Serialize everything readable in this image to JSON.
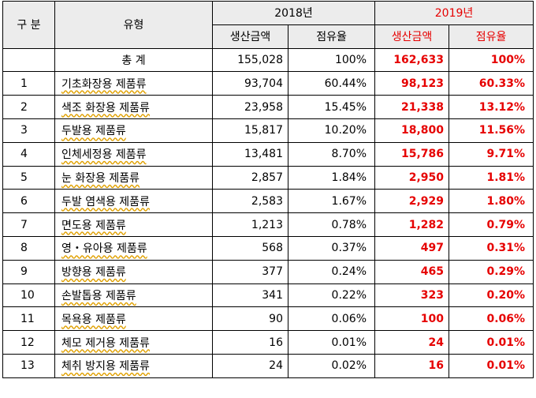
{
  "header": {
    "category": "구 분",
    "type": "유형",
    "year_2018": "2018년",
    "year_2019": "2019년",
    "production_amount_2018": "생산금액",
    "share_2018": "점유율",
    "production_amount_2019": "생산금액",
    "share_2019": "점유율"
  },
  "total": {
    "label": "총 계",
    "amount_2018": "155,028",
    "share_2018": "100%",
    "amount_2019": "162,633",
    "share_2019": "100%"
  },
  "rows": [
    {
      "no": "1",
      "name": "기초화장용 제품류",
      "amount_2018": "93,704",
      "share_2018": "60.44%",
      "amount_2019": "98,123",
      "share_2019": "60.33%"
    },
    {
      "no": "2",
      "name": "색조 화장용 제품류",
      "amount_2018": "23,958",
      "share_2018": "15.45%",
      "amount_2019": "21,338",
      "share_2019": "13.12%"
    },
    {
      "no": "3",
      "name": "두발용 제품류",
      "amount_2018": "15,817",
      "share_2018": "10.20%",
      "amount_2019": "18,800",
      "share_2019": "11.56%"
    },
    {
      "no": "4",
      "name": "인체세정용 제품류",
      "amount_2018": "13,481",
      "share_2018": "8.70%",
      "amount_2019": "15,786",
      "share_2019": "9.71%"
    },
    {
      "no": "5",
      "name": "눈 화장용 제품류",
      "amount_2018": "2,857",
      "share_2018": "1.84%",
      "amount_2019": "2,950",
      "share_2019": "1.81%"
    },
    {
      "no": "6",
      "name": "두발 염색용 제품류",
      "amount_2018": "2,583",
      "share_2018": "1.67%",
      "amount_2019": "2,929",
      "share_2019": "1.80%"
    },
    {
      "no": "7",
      "name": "면도용 제품류",
      "amount_2018": "1,213",
      "share_2018": "0.78%",
      "amount_2019": "1,282",
      "share_2019": "0.79%"
    },
    {
      "no": "8",
      "name": "영・유아용 제품류",
      "amount_2018": "568",
      "share_2018": "0.37%",
      "amount_2019": "497",
      "share_2019": "0.31%"
    },
    {
      "no": "9",
      "name": "방향용 제품류",
      "amount_2018": "377",
      "share_2018": "0.24%",
      "amount_2019": "465",
      "share_2019": "0.29%"
    },
    {
      "no": "10",
      "name": "손발톱용 제품류",
      "amount_2018": "341",
      "share_2018": "0.22%",
      "amount_2019": "323",
      "share_2019": "0.20%"
    },
    {
      "no": "11",
      "name": "목욕용 제품류",
      "amount_2018": "90",
      "share_2018": "0.06%",
      "amount_2019": "100",
      "share_2019": "0.06%"
    },
    {
      "no": "12",
      "name": "체모 제거용 제품류",
      "amount_2018": "16",
      "share_2018": "0.01%",
      "amount_2019": "24",
      "share_2019": "0.01%"
    },
    {
      "no": "13",
      "name": "체취 방지용 제품류",
      "amount_2018": "24",
      "share_2018": "0.02%",
      "amount_2019": "16",
      "share_2019": "0.01%"
    }
  ],
  "colors": {
    "highlight": "#e60000",
    "header_bg": "#ececec"
  }
}
